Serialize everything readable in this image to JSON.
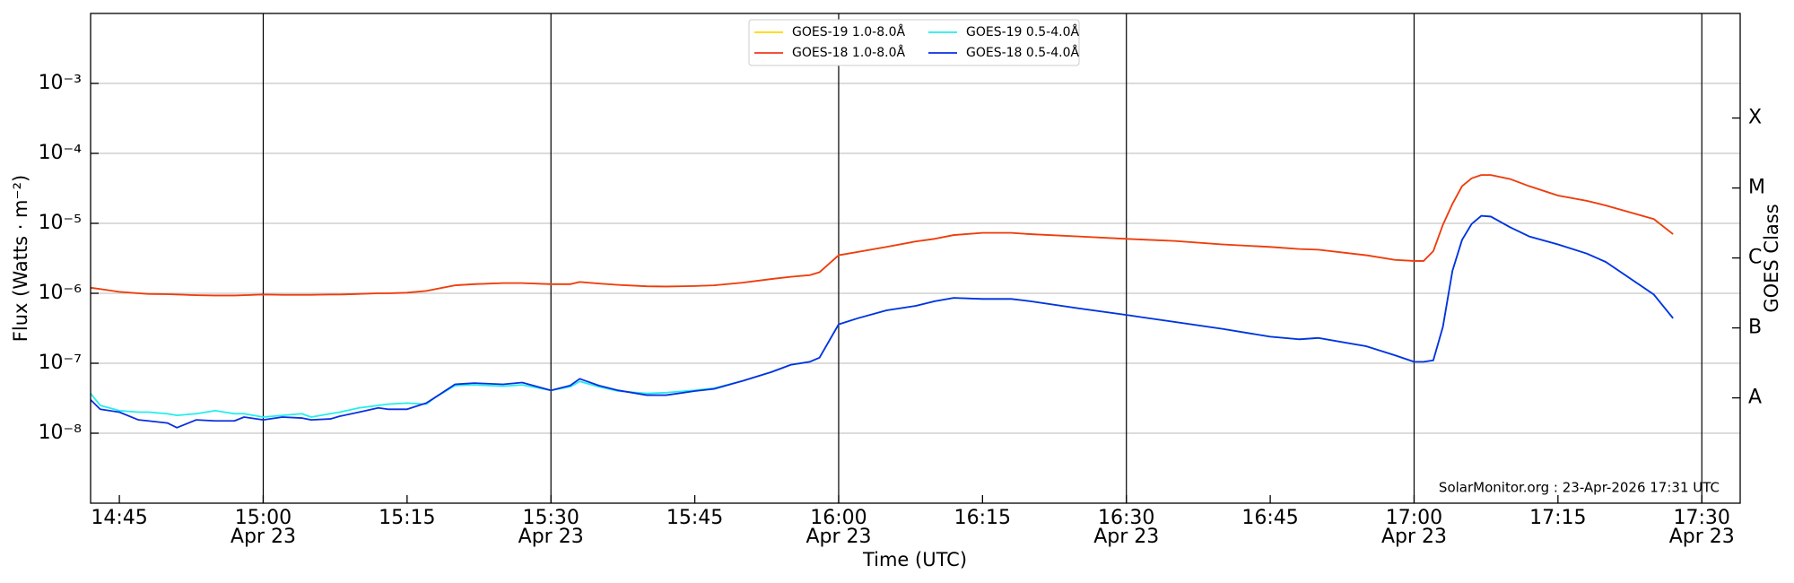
{
  "chart_data": {
    "type": "line",
    "xlabel": "Time (UTC)",
    "ylabel": "Flux (Watts · m⁻²)",
    "y2label": "GOES Class",
    "annotation": "SolarMonitor.org : 23-Apr-2026 17:31 UTC",
    "log_y": true,
    "grid": true,
    "legend": "upper center",
    "xlim": [
      "14:42",
      "17:34"
    ],
    "ylim": [
      1e-09,
      0.01
    ],
    "xticks": [
      "14:45",
      {
        "value": "15:00",
        "label": "15:00\nApr 23"
      },
      "15:15",
      {
        "value": "15:30",
        "label": "15:30\nApr 23"
      },
      "15:45",
      {
        "value": "16:00",
        "label": "16:00\nApr 23"
      },
      "16:15",
      {
        "value": "16:30",
        "label": "16:30\nApr 23"
      },
      "16:45",
      {
        "value": "17:00",
        "label": "17:00\nApr 23"
      },
      "17:15",
      {
        "value": "17:30",
        "label": "17:30\nApr 23"
      }
    ],
    "vlines": [
      "15:00",
      "15:30",
      "16:00",
      "16:30",
      "17:00",
      "17:30"
    ],
    "yticks": [
      {
        "value": 1e-08,
        "label": "10⁻⁸"
      },
      {
        "value": 1e-07,
        "label": "10⁻⁷"
      },
      {
        "value": 1e-06,
        "label": "10⁻⁶"
      },
      {
        "value": 1e-05,
        "label": "10⁻⁵"
      },
      {
        "value": 0.0001,
        "label": "10⁻⁴"
      },
      {
        "value": 0.001,
        "label": "10⁻³"
      }
    ],
    "y2lim": [
      1e-09,
      0.01
    ],
    "y2ticks": [
      {
        "value": 3.2e-08,
        "label": "A"
      },
      {
        "value": 3.2e-07,
        "label": "B"
      },
      {
        "value": 3.2e-06,
        "label": "C"
      },
      {
        "value": 3.2e-05,
        "label": "M"
      },
      {
        "value": 0.00032,
        "label": "X"
      }
    ],
    "x": [
      "14:42",
      "14:43",
      "14:45",
      "14:47",
      "14:48",
      "14:50",
      "14:51",
      "14:53",
      "14:55",
      "14:57",
      "14:58",
      "15:00",
      "15:02",
      "15:04",
      "15:05",
      "15:07",
      "15:08",
      "15:10",
      "15:12",
      "15:13",
      "15:15",
      "15:17",
      "15:18",
      "15:20",
      "15:22",
      "15:25",
      "15:27",
      "15:30",
      "15:32",
      "15:33",
      "15:35",
      "15:37",
      "15:40",
      "15:42",
      "15:45",
      "15:47",
      "15:50",
      "15:53",
      "15:55",
      "15:57",
      "15:58",
      "16:00",
      "16:02",
      "16:05",
      "16:08",
      "16:10",
      "16:12",
      "16:15",
      "16:18",
      "16:20",
      "16:25",
      "16:30",
      "16:35",
      "16:40",
      "16:45",
      "16:48",
      "16:50",
      "16:55",
      "16:58",
      "17:00",
      "17:01",
      "17:02",
      "17:03",
      "17:04",
      "17:05",
      "17:06",
      "17:07",
      "17:08",
      "17:10",
      "17:12",
      "17:15",
      "17:18",
      "17:20",
      "17:25",
      "17:27"
    ],
    "series": [
      {
        "name": "GOES-19 1.0-8.0Å",
        "color": "#ffd700",
        "values": [
          1.2e-06,
          1.15e-06,
          1.05e-06,
          1e-06,
          9.8e-07,
          9.7e-07,
          9.6e-07,
          9.4e-07,
          9.3e-07,
          9.3e-07,
          9.4e-07,
          9.6e-07,
          9.5e-07,
          9.5e-07,
          9.5e-07,
          9.6e-07,
          9.6e-07,
          9.8e-07,
          1e-06,
          1e-06,
          1.02e-06,
          1.08e-06,
          1.15e-06,
          1.3e-06,
          1.35e-06,
          1.4e-06,
          1.4e-06,
          1.35e-06,
          1.35e-06,
          1.45e-06,
          1.38e-06,
          1.32e-06,
          1.26e-06,
          1.25e-06,
          1.27e-06,
          1.3e-06,
          1.42e-06,
          1.6e-06,
          1.72e-06,
          1.82e-06,
          2e-06,
          3.5e-06,
          3.9e-06,
          4.6e-06,
          5.5e-06,
          6e-06,
          6.8e-06,
          7.3e-06,
          7.3e-06,
          7e-06,
          6.5e-06,
          6e-06,
          5.6e-06,
          5e-06,
          4.6e-06,
          4.3e-06,
          4.2e-06,
          3.5e-06,
          3e-06,
          2.9e-06,
          2.9e-06,
          4e-06,
          9.5e-06,
          1.9e-05,
          3.4e-05,
          4.4e-05,
          4.9e-05,
          4.9e-05,
          4.3e-05,
          3.4e-05,
          2.5e-05,
          2.1e-05,
          1.8e-05,
          1.15e-05,
          7e-06
        ]
      },
      {
        "name": "GOES-18 1.0-8.0Å",
        "color": "#ee3a1a",
        "values": [
          1.2e-06,
          1.15e-06,
          1.05e-06,
          1e-06,
          9.8e-07,
          9.7e-07,
          9.6e-07,
          9.4e-07,
          9.3e-07,
          9.3e-07,
          9.4e-07,
          9.6e-07,
          9.5e-07,
          9.5e-07,
          9.5e-07,
          9.6e-07,
          9.6e-07,
          9.8e-07,
          1e-06,
          1e-06,
          1.02e-06,
          1.08e-06,
          1.15e-06,
          1.3e-06,
          1.35e-06,
          1.4e-06,
          1.4e-06,
          1.35e-06,
          1.35e-06,
          1.45e-06,
          1.38e-06,
          1.32e-06,
          1.26e-06,
          1.25e-06,
          1.27e-06,
          1.3e-06,
          1.42e-06,
          1.6e-06,
          1.72e-06,
          1.82e-06,
          2e-06,
          3.5e-06,
          3.9e-06,
          4.6e-06,
          5.5e-06,
          6e-06,
          6.8e-06,
          7.3e-06,
          7.3e-06,
          7e-06,
          6.5e-06,
          6e-06,
          5.6e-06,
          5e-06,
          4.6e-06,
          4.3e-06,
          4.2e-06,
          3.5e-06,
          3e-06,
          2.9e-06,
          2.9e-06,
          4e-06,
          9.5e-06,
          1.9e-05,
          3.4e-05,
          4.4e-05,
          4.9e-05,
          4.9e-05,
          4.3e-05,
          3.4e-05,
          2.5e-05,
          2.1e-05,
          1.8e-05,
          1.15e-05,
          7e-06
        ]
      },
      {
        "name": "GOES-19 0.5-4.0Å",
        "color": "#22eeee",
        "values": [
          3.7e-08,
          2.5e-08,
          2.1e-08,
          2e-08,
          2e-08,
          1.9e-08,
          1.8e-08,
          1.9e-08,
          2.1e-08,
          1.9e-08,
          1.9e-08,
          1.7e-08,
          1.8e-08,
          1.9e-08,
          1.7e-08,
          1.9e-08,
          2e-08,
          2.3e-08,
          2.5e-08,
          2.6e-08,
          2.7e-08,
          2.6e-08,
          3.3e-08,
          4.8e-08,
          4.9e-08,
          4.7e-08,
          4.9e-08,
          4.1e-08,
          4.6e-08,
          5.5e-08,
          4.6e-08,
          4e-08,
          3.7e-08,
          3.8e-08,
          4.1e-08,
          4.4e-08,
          5.6e-08,
          7.5e-08,
          9.5e-08,
          1.05e-07,
          1.2e-07,
          3.6e-07,
          4.4e-07,
          5.7e-07,
          6.6e-07,
          7.7e-07,
          8.6e-07,
          8.3e-07,
          8.3e-07,
          7.7e-07,
          6.1e-07,
          4.9e-07,
          3.9e-07,
          3.1e-07,
          2.4e-07,
          2.2e-07,
          2.3e-07,
          1.75e-07,
          1.3e-07,
          1.05e-07,
          1.05e-07,
          1.1e-07,
          3.3e-07,
          2.1e-06,
          5.8e-06,
          9.8e-06,
          1.28e-05,
          1.25e-05,
          8.8e-06,
          6.5e-06,
          5e-06,
          3.7e-06,
          2.8e-06,
          9.6e-07,
          4.4e-07
        ]
      },
      {
        "name": "GOES-18 0.5-4.0Å",
        "color": "#0a2fe0",
        "values": [
          3e-08,
          2.2e-08,
          2e-08,
          1.55e-08,
          1.5e-08,
          1.4e-08,
          1.2e-08,
          1.55e-08,
          1.5e-08,
          1.5e-08,
          1.7e-08,
          1.55e-08,
          1.7e-08,
          1.65e-08,
          1.55e-08,
          1.6e-08,
          1.75e-08,
          2e-08,
          2.3e-08,
          2.2e-08,
          2.2e-08,
          2.7e-08,
          3.3e-08,
          5e-08,
          5.2e-08,
          5e-08,
          5.3e-08,
          4.1e-08,
          4.8e-08,
          6e-08,
          4.8e-08,
          4.1e-08,
          3.5e-08,
          3.5e-08,
          4e-08,
          4.3e-08,
          5.6e-08,
          7.5e-08,
          9.5e-08,
          1.05e-07,
          1.2e-07,
          3.6e-07,
          4.4e-07,
          5.7e-07,
          6.6e-07,
          7.7e-07,
          8.6e-07,
          8.3e-07,
          8.3e-07,
          7.7e-07,
          6.1e-07,
          4.9e-07,
          3.9e-07,
          3.1e-07,
          2.4e-07,
          2.2e-07,
          2.3e-07,
          1.75e-07,
          1.3e-07,
          1.05e-07,
          1.05e-07,
          1.1e-07,
          3.3e-07,
          2.1e-06,
          5.8e-06,
          9.8e-06,
          1.28e-05,
          1.25e-05,
          8.8e-06,
          6.5e-06,
          5e-06,
          3.7e-06,
          2.8e-06,
          9.6e-07,
          4.4e-07
        ]
      }
    ]
  }
}
